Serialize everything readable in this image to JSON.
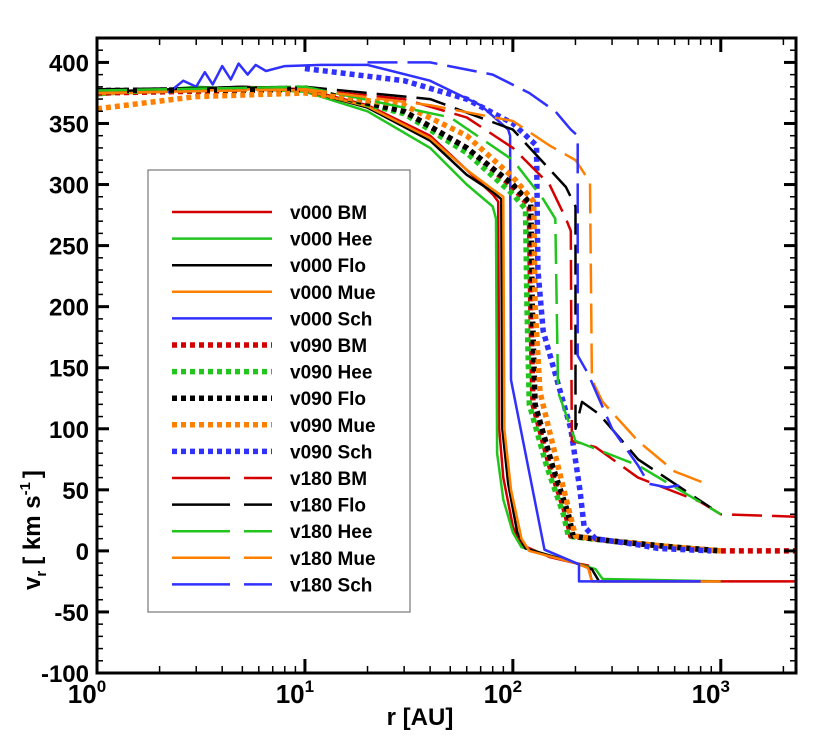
{
  "chart_data": {
    "type": "line",
    "title": "",
    "xlabel": "r [AU]",
    "ylabel_main": "v",
    "ylabel_sub": "r",
    "ylabel_unit": "[ km s",
    "ylabel_exp": "-1",
    "ylabel_close": "]",
    "xscale": "log",
    "xlim": [
      1,
      2300
    ],
    "ylim": [
      -100,
      420
    ],
    "xticks": [
      {
        "base": "10",
        "exp": "0",
        "value": 1
      },
      {
        "base": "10",
        "exp": "1",
        "value": 10
      },
      {
        "base": "10",
        "exp": "2",
        "value": 100
      },
      {
        "base": "10",
        "exp": "3",
        "value": 1000
      }
    ],
    "yticks": [
      "-100",
      "-50",
      "0",
      "50",
      "100",
      "150",
      "200",
      "250",
      "300",
      "350",
      "400"
    ],
    "legend_position": "center-left",
    "series": [
      {
        "name": "v000 BM",
        "color": "#d40000",
        "style": "solid",
        "points": [
          [
            1,
            375
          ],
          [
            5,
            380
          ],
          [
            10,
            378
          ],
          [
            20,
            365
          ],
          [
            40,
            340
          ],
          [
            60,
            312
          ],
          [
            80,
            292
          ],
          [
            85,
            286
          ],
          [
            86,
            100
          ],
          [
            90,
            60
          ],
          [
            100,
            20
          ],
          [
            110,
            5
          ],
          [
            150,
            -5
          ],
          [
            200,
            -10
          ],
          [
            230,
            -12
          ],
          [
            240,
            -25
          ],
          [
            2300,
            -25
          ]
        ]
      },
      {
        "name": "v000 Hee",
        "color": "#22c51e",
        "style": "solid",
        "points": [
          [
            1,
            373
          ],
          [
            3,
            380
          ],
          [
            10,
            376
          ],
          [
            20,
            360
          ],
          [
            40,
            330
          ],
          [
            60,
            300
          ],
          [
            80,
            282
          ],
          [
            83,
            272
          ],
          [
            84,
            80
          ],
          [
            90,
            42
          ],
          [
            100,
            15
          ],
          [
            110,
            3
          ],
          [
            200,
            -10
          ],
          [
            250,
            -15
          ],
          [
            270,
            -23
          ],
          [
            1000,
            -25
          ]
        ]
      },
      {
        "name": "v000 Flo",
        "color": "#000000",
        "style": "solid",
        "points": [
          [
            1,
            376
          ],
          [
            5,
            380
          ],
          [
            10,
            377
          ],
          [
            20,
            363
          ],
          [
            40,
            336
          ],
          [
            60,
            308
          ],
          [
            80,
            294
          ],
          [
            88,
            288
          ],
          [
            89,
            100
          ],
          [
            95,
            55
          ],
          [
            105,
            15
          ],
          [
            115,
            2
          ],
          [
            200,
            -10
          ],
          [
            240,
            -15
          ],
          [
            260,
            -25
          ],
          [
            1000,
            -25
          ]
        ]
      },
      {
        "name": "v000 Mue",
        "color": "#ff8000",
        "style": "solid",
        "points": [
          [
            1,
            374
          ],
          [
            5,
            378
          ],
          [
            10,
            377
          ],
          [
            20,
            364
          ],
          [
            40,
            338
          ],
          [
            60,
            312
          ],
          [
            80,
            296
          ],
          [
            90,
            290
          ],
          [
            91,
            100
          ],
          [
            98,
            50
          ],
          [
            110,
            10
          ],
          [
            120,
            0
          ],
          [
            200,
            -10
          ],
          [
            230,
            -14
          ],
          [
            240,
            -25
          ],
          [
            1000,
            -25
          ]
        ]
      },
      {
        "name": "v000 Sch",
        "color": "#3030ff",
        "style": "solid",
        "points": [
          [
            2.2,
            375
          ],
          [
            2.6,
            385
          ],
          [
            3,
            380
          ],
          [
            3.3,
            392
          ],
          [
            3.6,
            382
          ],
          [
            4,
            397
          ],
          [
            4.4,
            386
          ],
          [
            4.8,
            399
          ],
          [
            5.3,
            390
          ],
          [
            5.8,
            398
          ],
          [
            6.5,
            393
          ],
          [
            8,
            397
          ],
          [
            12,
            398
          ],
          [
            20,
            398
          ],
          [
            40,
            385
          ],
          [
            70,
            365
          ],
          [
            95,
            345
          ],
          [
            97,
            340
          ],
          [
            98,
            140
          ],
          [
            142,
            1
          ],
          [
            208,
            -11
          ],
          [
            208,
            -25
          ],
          [
            800,
            -25
          ]
        ]
      },
      {
        "name": "v090 BM",
        "color": "#d40000",
        "style": "dotted",
        "points": [
          [
            1,
            375
          ],
          [
            10,
            378
          ],
          [
            30,
            360
          ],
          [
            60,
            330
          ],
          [
            100,
            298
          ],
          [
            120,
            282
          ],
          [
            122,
            200
          ],
          [
            125,
            120
          ],
          [
            150,
            70
          ],
          [
            180,
            30
          ],
          [
            190,
            12
          ],
          [
            300,
            8
          ],
          [
            600,
            3
          ],
          [
            1000,
            0
          ],
          [
            2300,
            0
          ]
        ]
      },
      {
        "name": "v090 Hee",
        "color": "#22c51e",
        "style": "dotted",
        "points": [
          [
            1,
            376
          ],
          [
            10,
            379
          ],
          [
            30,
            358
          ],
          [
            60,
            326
          ],
          [
            100,
            292
          ],
          [
            115,
            280
          ],
          [
            117,
            200
          ],
          [
            120,
            120
          ],
          [
            145,
            70
          ],
          [
            175,
            30
          ],
          [
            185,
            12
          ],
          [
            300,
            8
          ],
          [
            600,
            3
          ],
          [
            1000,
            0
          ]
        ]
      },
      {
        "name": "v090 Flo",
        "color": "#000000",
        "style": "dotted",
        "points": [
          [
            1,
            377
          ],
          [
            10,
            378
          ],
          [
            30,
            360
          ],
          [
            60,
            330
          ],
          [
            100,
            300
          ],
          [
            122,
            284
          ],
          [
            124,
            200
          ],
          [
            128,
            120
          ],
          [
            155,
            70
          ],
          [
            185,
            30
          ],
          [
            195,
            12
          ],
          [
            300,
            8
          ],
          [
            600,
            3
          ],
          [
            1000,
            0
          ]
        ]
      },
      {
        "name": "v090 Mue",
        "color": "#ff8000",
        "style": "dotted",
        "points": [
          [
            1,
            362
          ],
          [
            3,
            372
          ],
          [
            10,
            375
          ],
          [
            30,
            365
          ],
          [
            60,
            340
          ],
          [
            100,
            306
          ],
          [
            126,
            286
          ],
          [
            128,
            200
          ],
          [
            135,
            130
          ],
          [
            170,
            60
          ],
          [
            200,
            12
          ],
          [
            300,
            8
          ],
          [
            600,
            3
          ],
          [
            1000,
            0
          ]
        ]
      },
      {
        "name": "v090 Sch",
        "color": "#3030ff",
        "style": "dotted",
        "points": [
          [
            10,
            395
          ],
          [
            30,
            385
          ],
          [
            60,
            370
          ],
          [
            100,
            350
          ],
          [
            130,
            332
          ],
          [
            132,
            230
          ],
          [
            140,
            180
          ],
          [
            190,
            100
          ],
          [
            210,
            50
          ],
          [
            220,
            20
          ],
          [
            250,
            10
          ],
          [
            400,
            5
          ],
          [
            500,
            2
          ],
          [
            900,
            0
          ]
        ]
      },
      {
        "name": "v180 BM",
        "color": "#d40000",
        "style": "dashed",
        "points": [
          [
            1,
            375
          ],
          [
            10,
            378
          ],
          [
            30,
            370
          ],
          [
            60,
            355
          ],
          [
            100,
            330
          ],
          [
            150,
            300
          ],
          [
            180,
            272
          ],
          [
            190,
            262
          ],
          [
            192,
            90
          ],
          [
            250,
            85
          ],
          [
            400,
            60
          ],
          [
            800,
            40
          ],
          [
            1000,
            30
          ],
          [
            2300,
            28
          ]
        ]
      },
      {
        "name": "v180 Flo",
        "color": "#000000",
        "style": "dashed",
        "points": [
          [
            1,
            378
          ],
          [
            10,
            380
          ],
          [
            40,
            370
          ],
          [
            100,
            345
          ],
          [
            180,
            298
          ],
          [
            200,
            282
          ],
          [
            200,
            100
          ],
          [
            215,
            122
          ],
          [
            260,
            112
          ],
          [
            400,
            75
          ],
          [
            900,
            35
          ]
        ]
      },
      {
        "name": "v180 Hee",
        "color": "#22c51e",
        "style": "dashed",
        "points": [
          [
            1,
            377
          ],
          [
            10,
            380
          ],
          [
            50,
            355
          ],
          [
            100,
            320
          ],
          [
            140,
            288
          ],
          [
            160,
            272
          ],
          [
            165,
            130
          ],
          [
            200,
            90
          ],
          [
            400,
            70
          ],
          [
            1000,
            30
          ]
        ]
      },
      {
        "name": "v180 Mue",
        "color": "#ff8000",
        "style": "dashed",
        "points": [
          [
            1,
            375
          ],
          [
            10,
            378
          ],
          [
            40,
            365
          ],
          [
            100,
            352
          ],
          [
            150,
            332
          ],
          [
            200,
            320
          ],
          [
            235,
            302
          ],
          [
            240,
            140
          ],
          [
            270,
            122
          ],
          [
            400,
            90
          ],
          [
            600,
            65
          ],
          [
            850,
            55
          ]
        ]
      },
      {
        "name": "v180 Sch",
        "color": "#3030ff",
        "style": "dashed",
        "points": [
          [
            20,
            400
          ],
          [
            40,
            400
          ],
          [
            80,
            390
          ],
          [
            120,
            375
          ],
          [
            160,
            360
          ],
          [
            190,
            345
          ],
          [
            205,
            340
          ],
          [
            205,
            160
          ],
          [
            230,
            145
          ],
          [
            300,
            100
          ],
          [
            400,
            70
          ],
          [
            450,
            55
          ],
          [
            550,
            52
          ],
          [
            700,
            55
          ]
        ]
      }
    ]
  }
}
